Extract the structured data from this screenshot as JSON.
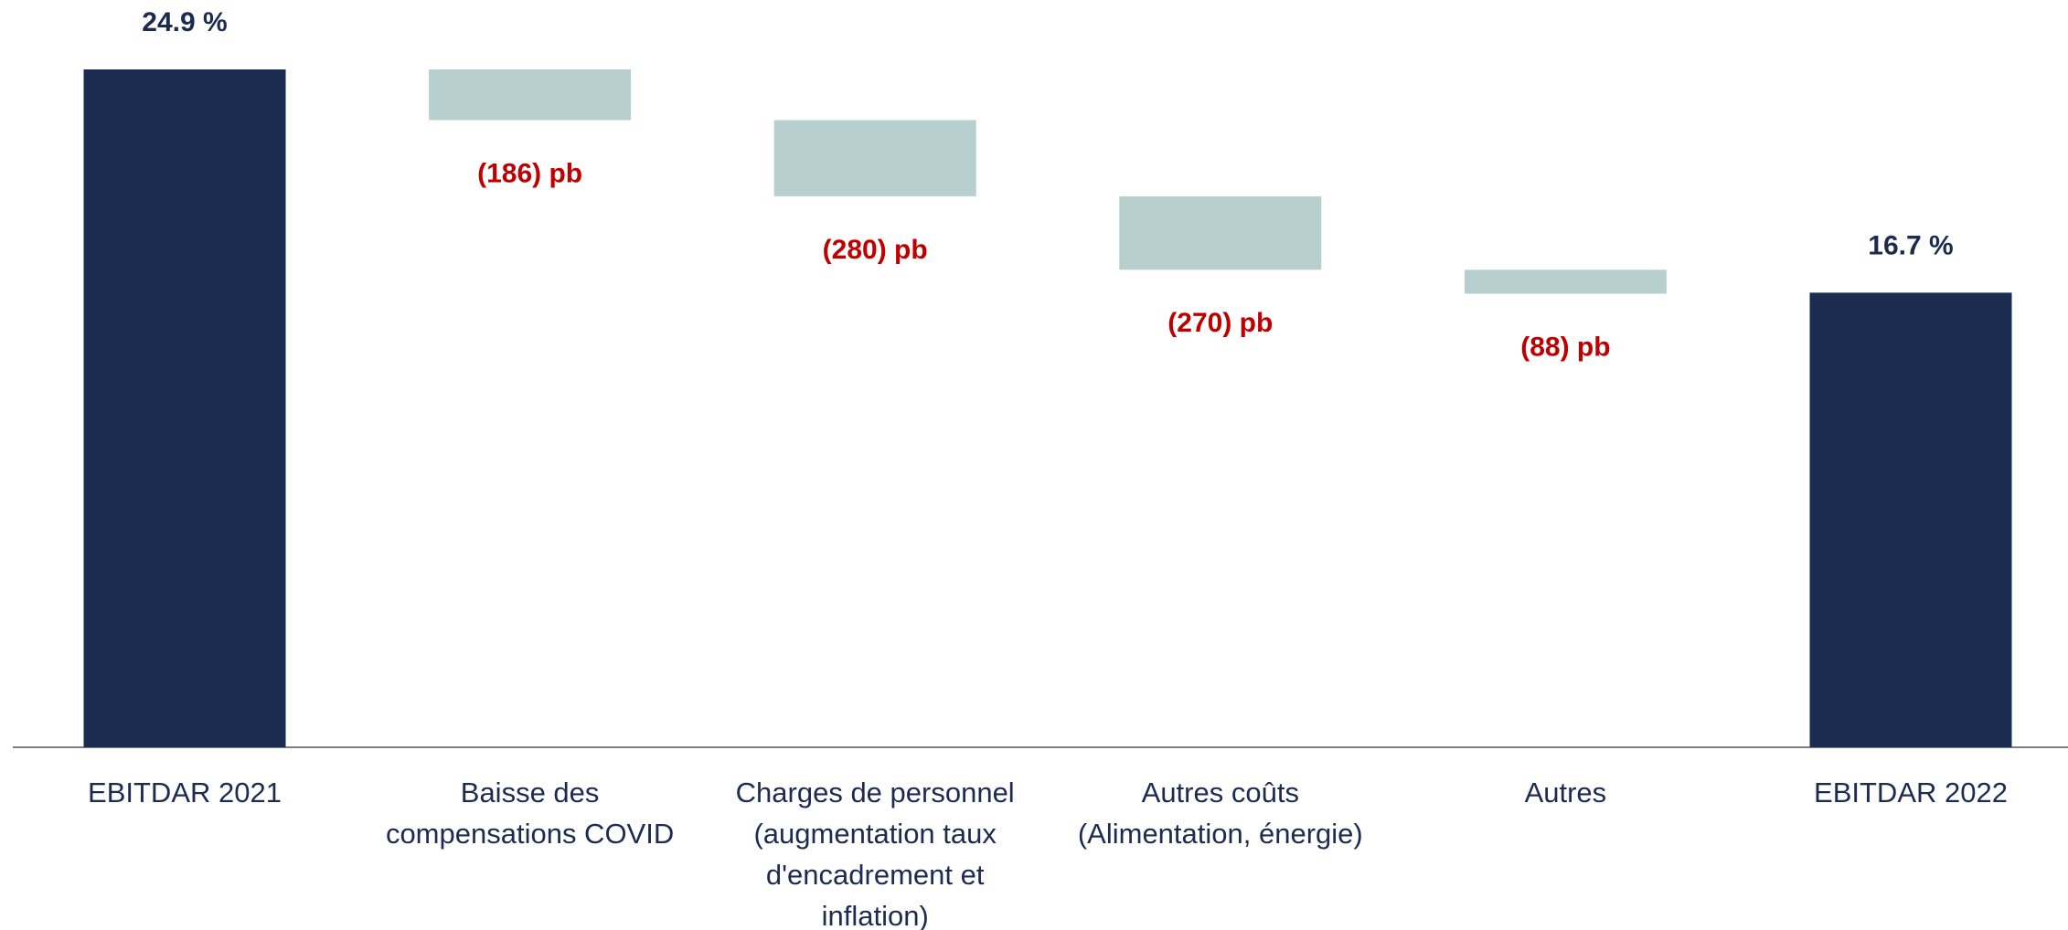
{
  "chart_data": {
    "type": "waterfall",
    "categories": [
      "EBITDAR 2021",
      "Baisse des compensations COVID",
      "Charges de personnel (augmentation taux d'encadrement et inflation)",
      "Autres coûts (Alimentation, énergie)",
      "Autres",
      "EBITDAR 2022"
    ],
    "values": [
      24.9,
      -1.86,
      -2.8,
      -2.7,
      -0.88,
      16.7
    ],
    "value_labels": [
      "24.9 %",
      "(186) pb",
      "(280) pb",
      "(270) pb",
      "(88) pb",
      "16.7 %"
    ],
    "colors": [
      "#1c2b50",
      "#b8cfcf",
      "#b8cfcf",
      "#b8cfcf",
      "#b8cfcf",
      "#1c2b50"
    ],
    "label_colors": [
      "#1c2b50",
      "#c00000",
      "#c00000",
      "#c00000",
      "#c00000",
      "#1c2b50"
    ]
  }
}
